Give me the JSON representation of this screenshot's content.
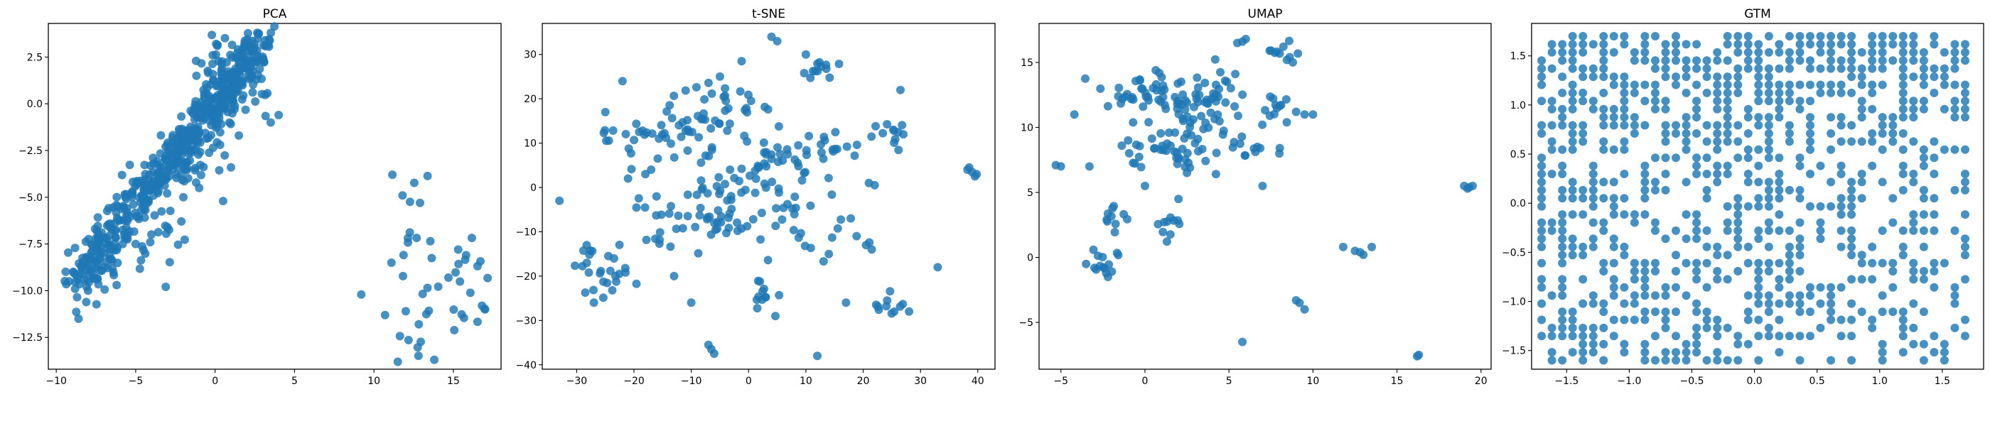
{
  "figure": {
    "point_color": "#1f77b4",
    "grid": false
  },
  "chart_data": [
    {
      "type": "scatter",
      "title": "PCA",
      "xlabel": "",
      "ylabel": "",
      "xlim": [
        -10.5,
        18.0
      ],
      "ylim": [
        -14.2,
        4.3
      ],
      "xticks": [
        -10,
        -5,
        0,
        5,
        10,
        15
      ],
      "yticks": [
        -12.5,
        -10.0,
        -7.5,
        -5.0,
        -2.5,
        0.0,
        2.5
      ],
      "xtick_labels": [
        "−10",
        "−5",
        "0",
        "5",
        "10",
        "15"
      ],
      "ytick_labels": [
        "−12.5",
        "−10.0",
        "−7.5",
        "−5.0",
        "−2.5",
        "0.0",
        "2.5"
      ],
      "clusters": [
        {
          "cx": -4.2,
          "cy": -5.8,
          "sx": 1.1,
          "sy": 1.6,
          "n": 40
        },
        {
          "cx": -2.0,
          "cy": -2.8,
          "sx": 1.0,
          "sy": 1.0,
          "n": 50
        },
        {
          "cx": 0.2,
          "cy": 0.5,
          "sx": 0.9,
          "sy": 0.9,
          "n": 60
        },
        {
          "cx": 1.3,
          "cy": 2.2,
          "sx": 0.9,
          "sy": 0.8,
          "n": 50
        },
        {
          "cx": 2.8,
          "cy": 1.3,
          "sx": 0.6,
          "sy": 1.0,
          "n": 14
        },
        {
          "cx": -7.0,
          "cy": -8.8,
          "sx": 1.0,
          "sy": 1.0,
          "n": 24
        },
        {
          "cx": 12.3,
          "cy": -6.5,
          "sx": 0.6,
          "sy": 1.4,
          "n": 10
        },
        {
          "cx": 15.0,
          "cy": -9.8,
          "sx": 1.2,
          "sy": 1.6,
          "n": 22
        },
        {
          "cx": 12.8,
          "cy": -12.5,
          "sx": 0.6,
          "sy": 0.8,
          "n": 7
        }
      ],
      "points": [
        [
          -9.2,
          -9.5
        ],
        [
          -8.6,
          -11.5
        ],
        [
          -8.0,
          -10.0
        ],
        [
          -7.5,
          -8.8
        ],
        [
          -6.2,
          -9.7
        ],
        [
          -5.0,
          -7.5
        ],
        [
          -3.0,
          -6.6
        ],
        [
          -2.0,
          -5.0
        ],
        [
          -1.0,
          -4.5
        ],
        [
          0.5,
          -5.2
        ],
        [
          1.0,
          -3.4
        ],
        [
          3.5,
          -1.0
        ],
        [
          4.0,
          -0.6
        ],
        [
          9.2,
          -10.2
        ],
        [
          11.1,
          -8.5
        ],
        [
          11.8,
          -4.9
        ],
        [
          12.9,
          -5.3
        ],
        [
          11.5,
          -13.8
        ],
        [
          13.8,
          -13.7
        ],
        [
          16.8,
          -10.8
        ],
        [
          15.3,
          -7.8
        ],
        [
          15.8,
          -8.1
        ],
        [
          12.0,
          -11.1
        ],
        [
          10.7,
          -11.3
        ],
        [
          17.0,
          -11.0
        ]
      ]
    },
    {
      "type": "scatter",
      "title": "t-SNE",
      "xlabel": "",
      "ylabel": "",
      "xlim": [
        -36.0,
        43.0
      ],
      "ylim": [
        -41.0,
        37.0
      ],
      "xticks": [
        -30,
        -20,
        -10,
        0,
        10,
        20,
        30,
        40
      ],
      "yticks": [
        -40,
        -30,
        -20,
        -10,
        0,
        10,
        20,
        30
      ],
      "xtick_labels": [
        "−30",
        "−20",
        "−10",
        "0",
        "10",
        "20",
        "30",
        "40"
      ],
      "ytick_labels": [
        "−40",
        "−30",
        "−20",
        "−10",
        "0",
        "10",
        "20",
        "30"
      ],
      "clusters": [
        {
          "cx": -10.0,
          "cy": 15.0,
          "sx": 4.0,
          "sy": 4.0,
          "n": 40
        },
        {
          "cx": -5.0,
          "cy": -5.0,
          "sx": 4.0,
          "sy": 4.0,
          "n": 40
        },
        {
          "cx": 5.0,
          "cy": 5.0,
          "sx": 4.0,
          "sy": 5.0,
          "n": 45
        },
        {
          "cx": -20.0,
          "cy": 10.0,
          "sx": 3.0,
          "sy": 3.0,
          "n": 18
        },
        {
          "cx": -25.0,
          "cy": -20.0,
          "sx": 3.0,
          "sy": 3.0,
          "n": 18
        },
        {
          "cx": 10.0,
          "cy": -7.0,
          "sx": 4.0,
          "sy": 4.0,
          "n": 25
        },
        {
          "cx": 2.0,
          "cy": -25.0,
          "sx": 2.0,
          "sy": 2.0,
          "n": 12
        },
        {
          "cx": 12.0,
          "cy": 27.0,
          "sx": 1.5,
          "sy": 1.5,
          "n": 12
        },
        {
          "cx": 25.0,
          "cy": 12.0,
          "sx": 1.5,
          "sy": 1.5,
          "n": 12
        },
        {
          "cx": 25.0,
          "cy": -27.0,
          "sx": 1.5,
          "sy": 1.5,
          "n": 10
        },
        {
          "cx": -15.0,
          "cy": -10.0,
          "sx": 4.0,
          "sy": 4.0,
          "n": 20
        },
        {
          "cx": -2.0,
          "cy": 20.0,
          "sx": 3.0,
          "sy": 3.0,
          "n": 15
        },
        {
          "cx": 15.0,
          "cy": 10.0,
          "sx": 3.0,
          "sy": 3.0,
          "n": 15
        },
        {
          "cx": -28.0,
          "cy": -16.0,
          "sx": 1.5,
          "sy": 1.5,
          "n": 8
        }
      ],
      "points": [
        [
          -33.0,
          -3.0
        ],
        [
          -22.0,
          24.0
        ],
        [
          -5.0,
          25.0
        ],
        [
          4.0,
          34.0
        ],
        [
          5.0,
          33.0
        ],
        [
          -6.5,
          -36.5
        ],
        [
          -6.0,
          -37.5
        ],
        [
          -7.0,
          -35.5
        ],
        [
          12.0,
          -38.0
        ],
        [
          33.0,
          -18.0
        ],
        [
          38.5,
          4.5
        ],
        [
          39.0,
          3.5
        ],
        [
          39.5,
          2.5
        ],
        [
          38.2,
          4.0
        ],
        [
          39.8,
          3.0
        ],
        [
          21.0,
          1.0
        ],
        [
          22.0,
          0.5
        ],
        [
          20.5,
          -13.0
        ],
        [
          21.5,
          -14.0
        ],
        [
          17.0,
          -26.0
        ],
        [
          -10.0,
          -26.0
        ],
        [
          -13.0,
          -20.0
        ],
        [
          -27.0,
          -26.0
        ],
        [
          -25.0,
          17.0
        ],
        [
          -18.0,
          3.0
        ],
        [
          -17.0,
          4.0
        ],
        [
          10.0,
          30.0
        ],
        [
          28.0,
          -28.0
        ],
        [
          26.5,
          22.0
        ],
        [
          14.0,
          -15.0
        ]
      ]
    },
    {
      "type": "scatter",
      "title": "UMAP",
      "xlabel": "",
      "ylabel": "",
      "xlim": [
        -6.3,
        20.6
      ],
      "ylim": [
        -8.6,
        18.0
      ],
      "xticks": [
        -5,
        0,
        5,
        10,
        15,
        20
      ],
      "yticks": [
        -5,
        0,
        5,
        10,
        15
      ],
      "xtick_labels": [
        "−5",
        "0",
        "5",
        "10",
        "15",
        "20"
      ],
      "ytick_labels": [
        "−5",
        "0",
        "5",
        "10",
        "15"
      ],
      "clusters": [
        {
          "cx": 0.0,
          "cy": 12.5,
          "sx": 1.3,
          "sy": 1.0,
          "n": 45
        },
        {
          "cx": 3.0,
          "cy": 11.0,
          "sx": 1.2,
          "sy": 1.4,
          "n": 40
        },
        {
          "cx": 1.5,
          "cy": 8.0,
          "sx": 1.5,
          "sy": 0.8,
          "n": 35
        },
        {
          "cx": 4.5,
          "cy": 12.5,
          "sx": 0.7,
          "sy": 1.5,
          "n": 20
        },
        {
          "cx": 8.5,
          "cy": 15.8,
          "sx": 0.5,
          "sy": 0.5,
          "n": 10
        },
        {
          "cx": 7.5,
          "cy": 12.0,
          "sx": 0.5,
          "sy": 1.0,
          "n": 12
        },
        {
          "cx": 6.5,
          "cy": 8.3,
          "sx": 0.8,
          "sy": 0.5,
          "n": 10
        },
        {
          "cx": -1.8,
          "cy": 3.0,
          "sx": 0.5,
          "sy": 0.8,
          "n": 10
        },
        {
          "cx": -2.5,
          "cy": -0.5,
          "sx": 0.6,
          "sy": 0.6,
          "n": 12
        },
        {
          "cx": 1.5,
          "cy": 2.5,
          "sx": 0.6,
          "sy": 0.6,
          "n": 10
        }
      ],
      "points": [
        [
          -5.3,
          7.1
        ],
        [
          -5.0,
          7.0
        ],
        [
          -4.2,
          11.0
        ],
        [
          -3.5,
          -0.5
        ],
        [
          -3.0,
          -0.8
        ],
        [
          -2.2,
          -1.5
        ],
        [
          5.5,
          16.5
        ],
        [
          6.0,
          16.8
        ],
        [
          5.8,
          16.6
        ],
        [
          8.8,
          15.0
        ],
        [
          9.0,
          11.2
        ],
        [
          9.5,
          11.0
        ],
        [
          9.2,
          -3.5
        ],
        [
          9.5,
          -4.0
        ],
        [
          9.0,
          -3.3
        ],
        [
          11.8,
          0.8
        ],
        [
          12.5,
          0.5
        ],
        [
          13.0,
          0.2
        ],
        [
          13.5,
          0.8
        ],
        [
          12.8,
          0.4
        ],
        [
          19.0,
          5.5
        ],
        [
          19.3,
          5.4
        ],
        [
          19.5,
          5.5
        ],
        [
          19.2,
          5.3
        ],
        [
          16.3,
          -7.5
        ],
        [
          16.2,
          -7.6
        ],
        [
          5.8,
          -6.5
        ],
        [
          -1.0,
          9.0
        ],
        [
          7.0,
          5.5
        ],
        [
          0.0,
          5.5
        ],
        [
          2.0,
          4.5
        ],
        [
          8.0,
          8.0
        ],
        [
          10.0,
          11.0
        ],
        [
          -3.3,
          7.0
        ],
        [
          2.5,
          6.5
        ]
      ]
    },
    {
      "type": "scatter",
      "title": "GTM",
      "xlabel": "",
      "ylabel": "",
      "xlim": [
        -1.78,
        1.83
      ],
      "ylim": [
        -1.69,
        1.83
      ],
      "xticks": [
        -1.5,
        -1.0,
        -0.5,
        0.0,
        0.5,
        1.0,
        1.5
      ],
      "yticks": [
        -1.5,
        -1.0,
        -0.5,
        0.0,
        0.5,
        1.0,
        1.5
      ],
      "xtick_labels": [
        "−1.5",
        "−1.0",
        "−0.5",
        "0.0",
        "0.5",
        "1.0",
        "1.5"
      ],
      "ytick_labels": [
        "−1.5",
        "−1.0",
        "−0.5",
        "0.0",
        "0.5",
        "1.0",
        "1.5"
      ],
      "grid_nodes": {
        "x_min": -1.7,
        "x_max": 1.7,
        "y_min": -1.6,
        "y_max": 1.7,
        "step": 0.0825
      },
      "fill_density": {
        "base": 0.25,
        "top_bonus": 0.45,
        "left_bonus": 0.3
      }
    }
  ]
}
